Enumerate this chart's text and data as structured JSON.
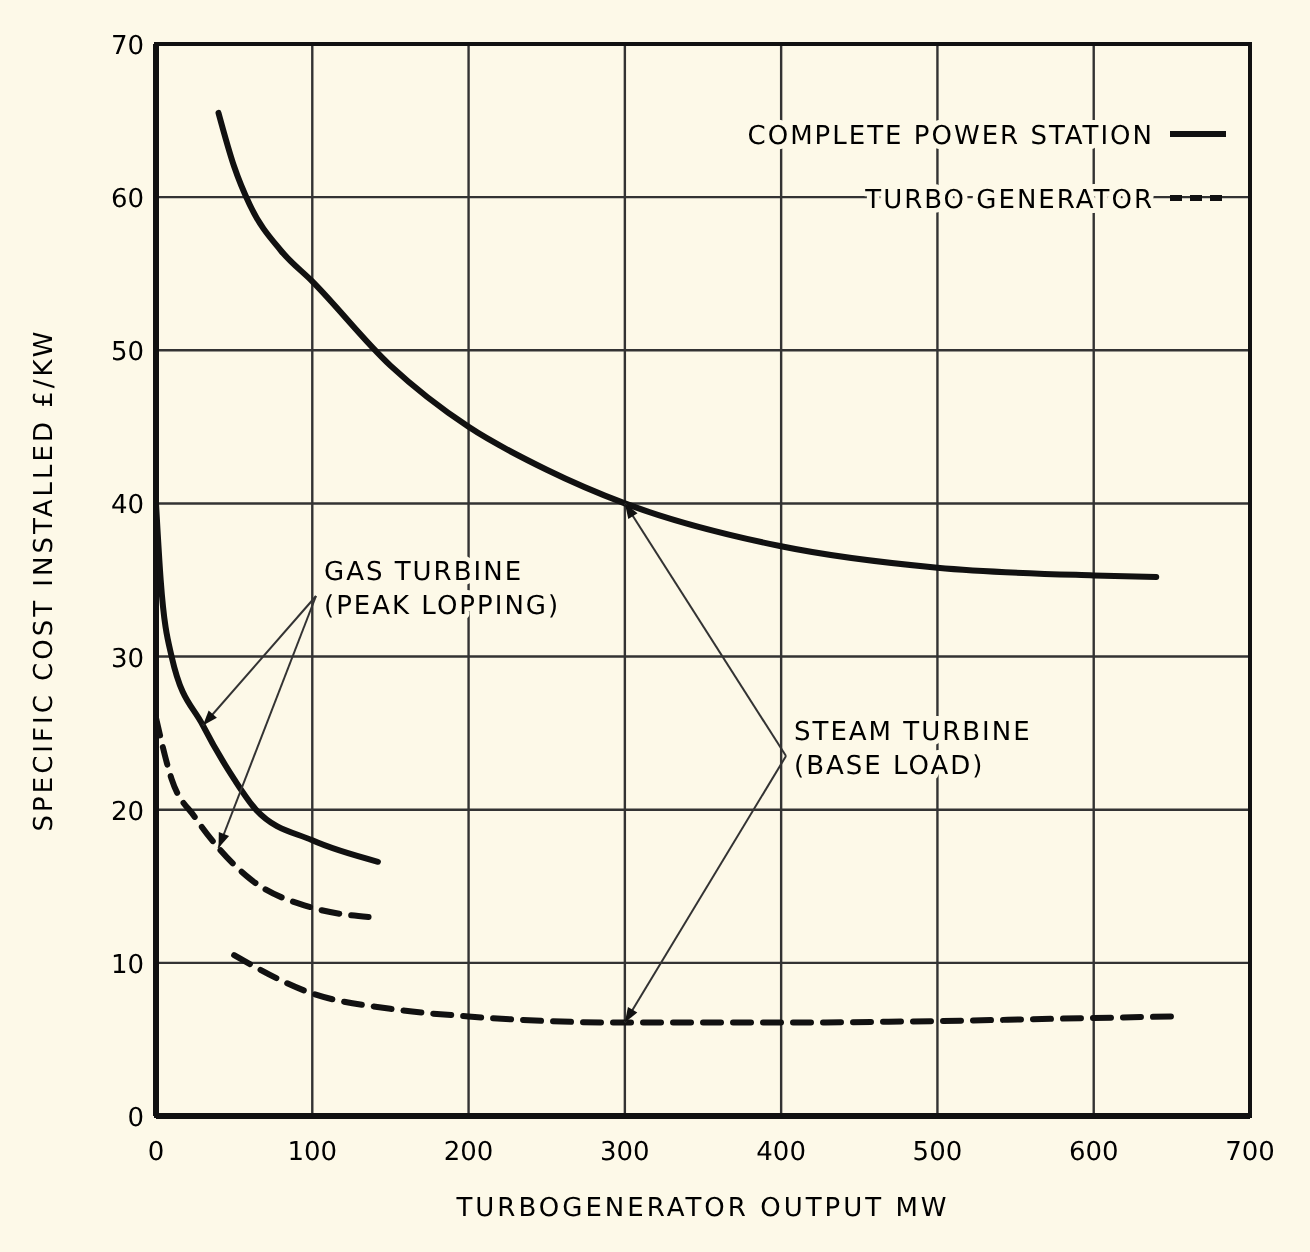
{
  "chart_data": {
    "type": "line",
    "xlabel": "TURBOGENERATOR OUTPUT MW",
    "ylabel": "SPECIFIC COST INSTALLED £/KW",
    "xlim": [
      0,
      700
    ],
    "xticks": [
      0,
      100,
      200,
      300,
      400,
      500,
      600,
      700
    ],
    "ylim": [
      0,
      70
    ],
    "yticks": [
      0,
      10,
      20,
      30,
      40,
      50,
      60,
      70
    ],
    "grid": true,
    "legend": "top right",
    "marker": "none",
    "series": [
      {
        "name": "COMPLETE POWER STATION",
        "color": "#111111",
        "line_style": "solid",
        "x": [
          40,
          50,
          60,
          80,
          100,
          150,
          200,
          250,
          300,
          400,
          500,
          600,
          640
        ],
        "values": [
          65.5,
          62,
          59.5,
          56.5,
          54.5,
          49,
          45,
          42.2,
          40,
          37.2,
          35.8,
          35.3,
          35.2
        ]
      },
      {
        "name": "TURBO GENERATOR",
        "color": "#111111",
        "line_style": "dashed",
        "x": [
          50,
          100,
          150,
          200,
          300,
          400,
          500,
          600,
          650
        ],
        "values": [
          10.5,
          8,
          7,
          6.5,
          6.1,
          6.1,
          6.2,
          6.4,
          6.5
        ]
      },
      {
        "color": "#111111",
        "line_style": "solid",
        "x": [
          0,
          3,
          10,
          30,
          50,
          64,
          100,
          142
        ],
        "values": [
          40,
          35,
          30,
          25.5,
          22,
          20,
          18,
          16.6
        ]
      },
      {
        "color": "#111111",
        "line_style": "dashed",
        "x": [
          0,
          10,
          25,
          40,
          60,
          100,
          136
        ],
        "values": [
          26,
          22,
          19.5,
          17.5,
          15.5,
          13.6,
          13
        ]
      }
    ],
    "annotations": [
      {
        "text": "GAS TURBINE (PEAK LOPPING)",
        "x": 30,
        "y": 25.5
      },
      {
        "text": "STEAM TURBINE (BASE LOAD)",
        "x": 300,
        "y": 40
      }
    ]
  }
}
